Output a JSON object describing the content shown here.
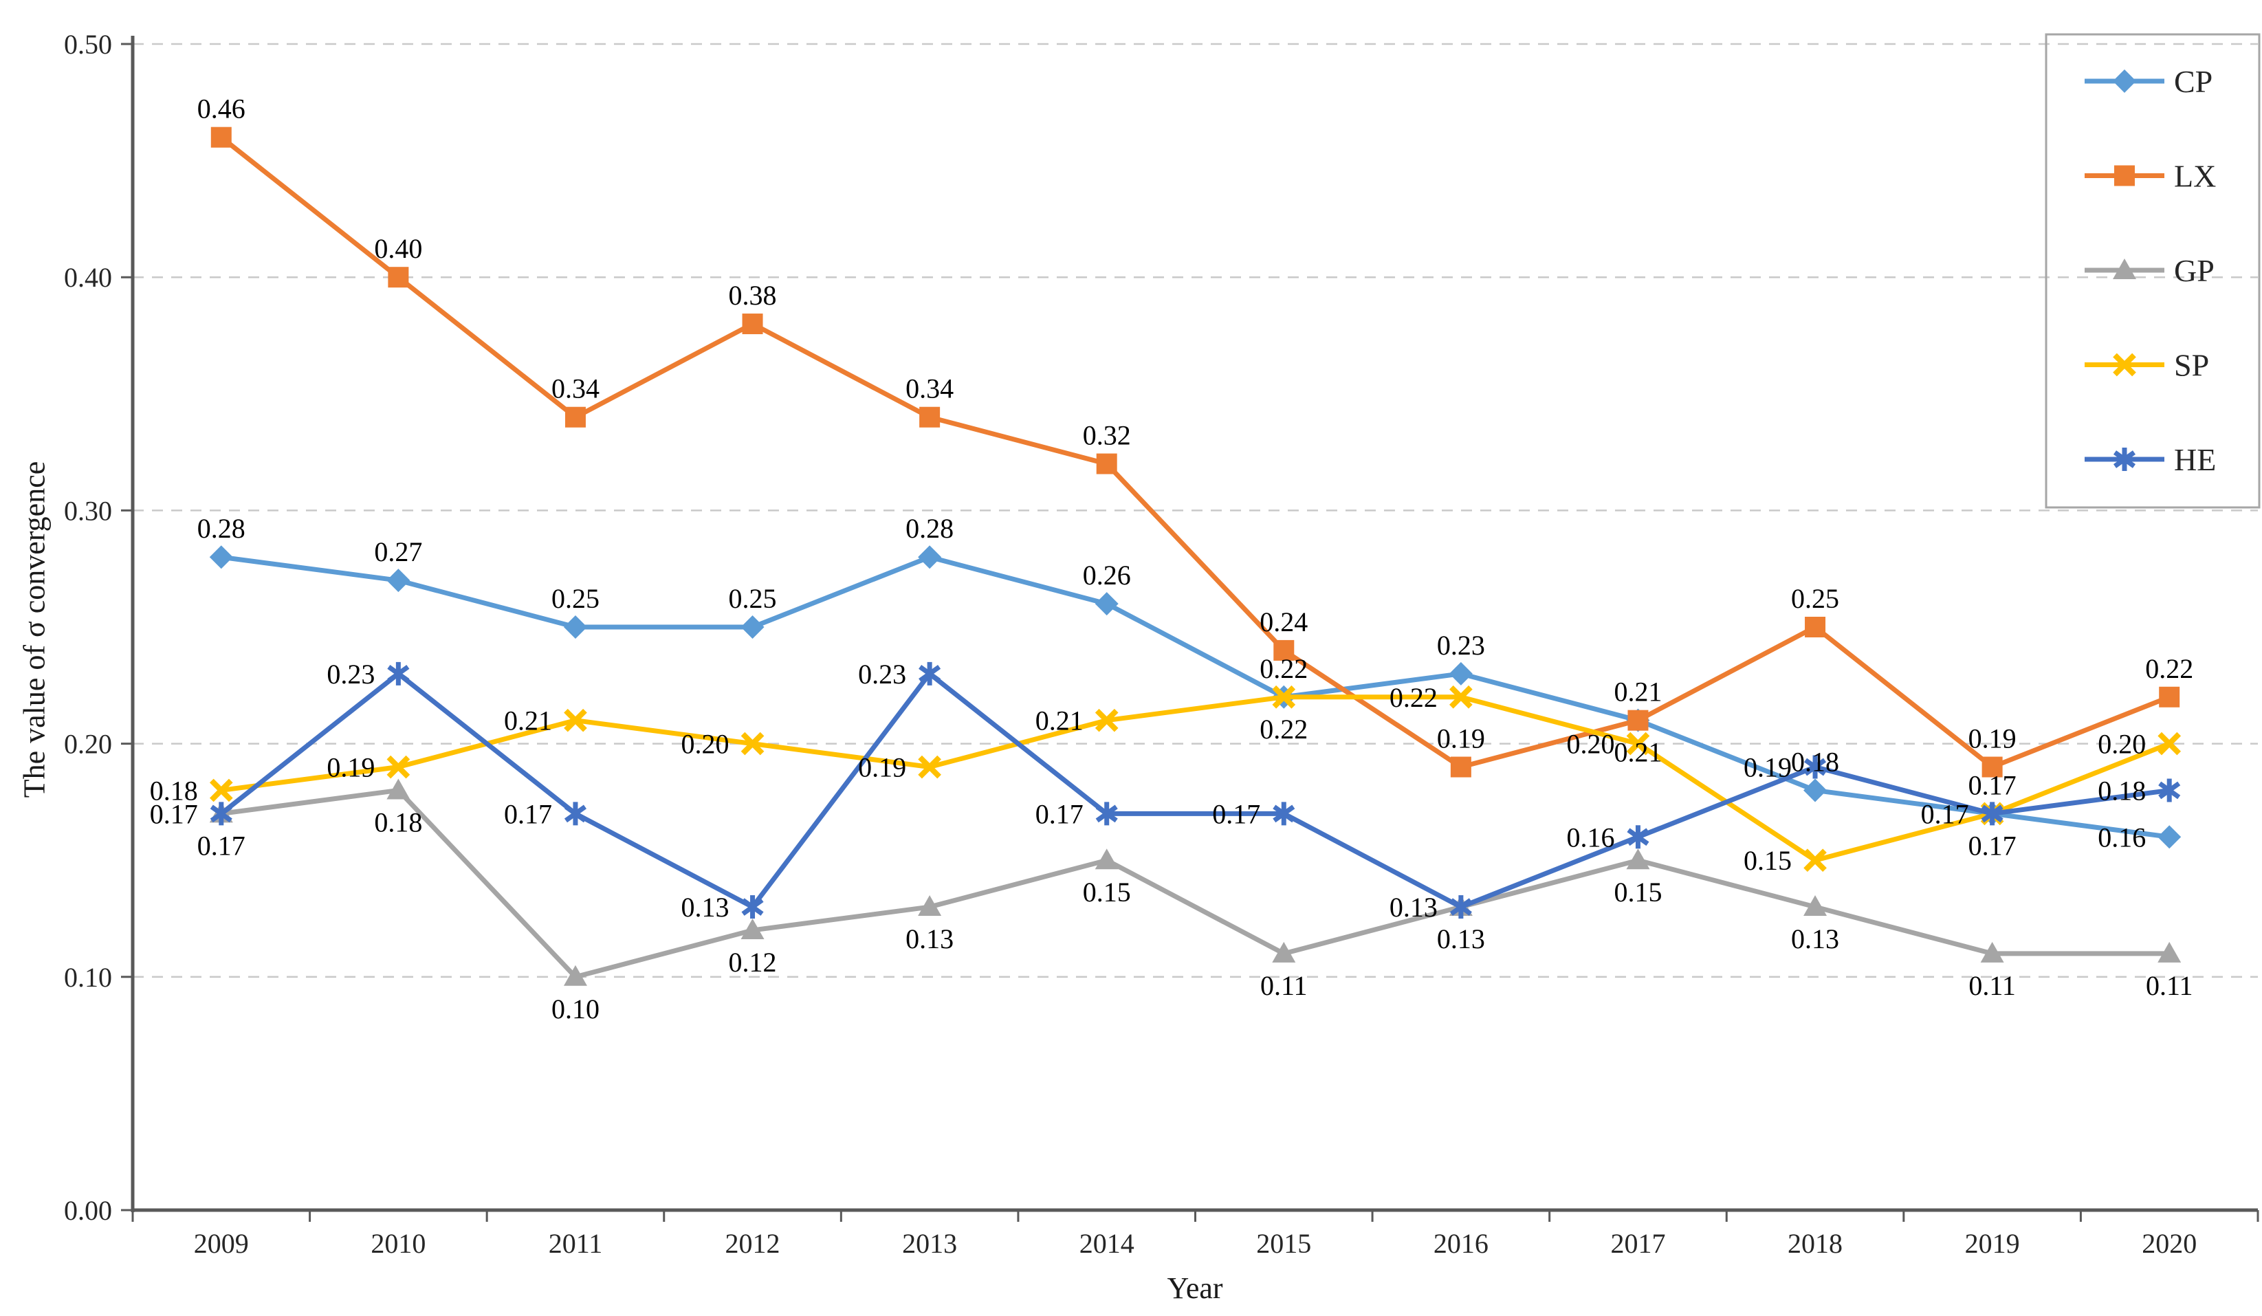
{
  "chart_data": {
    "type": "line",
    "title": "",
    "xlabel": "Year",
    "ylabel": "The value of σ convergence",
    "x": [
      2009,
      2010,
      2011,
      2012,
      2013,
      2014,
      2015,
      2016,
      2017,
      2018,
      2019,
      2020
    ],
    "ylim": [
      0.0,
      0.5
    ],
    "ytick_step": 0.1,
    "ytick_labels": [
      "0.00",
      "0.10",
      "0.20",
      "0.30",
      "0.40",
      "0.50"
    ],
    "grid": "horizontal-dashed",
    "legend_position": "top-right-box",
    "data_label_decimals": 2,
    "series": [
      {
        "name": "CP",
        "color": "#5B9BD5",
        "marker": "diamond",
        "values": [
          0.28,
          0.27,
          0.25,
          0.25,
          0.28,
          0.26,
          0.22,
          0.23,
          0.21,
          0.18,
          0.17,
          0.16
        ],
        "label_pos": [
          "above",
          "above",
          "above",
          "above",
          "above",
          "above",
          "below",
          "above",
          "below",
          "above",
          "left",
          "left"
        ]
      },
      {
        "name": "LX",
        "color": "#ED7D31",
        "marker": "square",
        "values": [
          0.46,
          0.4,
          0.34,
          0.38,
          0.34,
          0.32,
          0.24,
          0.19,
          0.21,
          0.25,
          0.19,
          0.22
        ],
        "label_pos": [
          "above",
          "above",
          "above",
          "above",
          "above",
          "above",
          "above",
          "above",
          "above",
          "above",
          "above",
          "above"
        ]
      },
      {
        "name": "GP",
        "color": "#A5A5A5",
        "marker": "triangle",
        "values": [
          0.17,
          0.18,
          0.1,
          0.12,
          0.13,
          0.15,
          0.11,
          0.13,
          0.15,
          0.13,
          0.11,
          0.11
        ],
        "label_pos": [
          "below",
          "below",
          "below",
          "below",
          "below",
          "below",
          "below",
          "below",
          "below",
          "below",
          "below",
          "below"
        ]
      },
      {
        "name": "SP",
        "color": "#FFC000",
        "marker": "x",
        "values": [
          0.18,
          0.19,
          0.21,
          0.2,
          0.19,
          0.21,
          0.22,
          0.22,
          0.2,
          0.15,
          0.17,
          0.2
        ],
        "label_pos": [
          "left",
          "left",
          "left",
          "left",
          "left",
          "left",
          "above",
          "left",
          "left",
          "left",
          "below",
          "left"
        ]
      },
      {
        "name": "HE",
        "color": "#4472C4",
        "marker": "asterisk",
        "values": [
          0.17,
          0.23,
          0.17,
          0.13,
          0.23,
          0.17,
          0.17,
          0.13,
          0.16,
          0.19,
          0.17,
          0.18
        ],
        "label_pos": [
          "left",
          "left",
          "left",
          "left",
          "left",
          "left",
          "left",
          "left",
          "left",
          "left",
          "above",
          "left"
        ]
      }
    ]
  },
  "axes": {
    "x_title": "Year",
    "y_title": "The value of σ convergence"
  },
  "legend": {
    "items": [
      "CP",
      "LX",
      "GP",
      "SP",
      "HE"
    ]
  },
  "colors": {
    "axis_line": "#595959",
    "gridline": "#C9C9C9",
    "data_label": "#000000",
    "tick_text": "#262626",
    "legend_border": "#A6A6A6",
    "background": "#FFFFFF"
  }
}
